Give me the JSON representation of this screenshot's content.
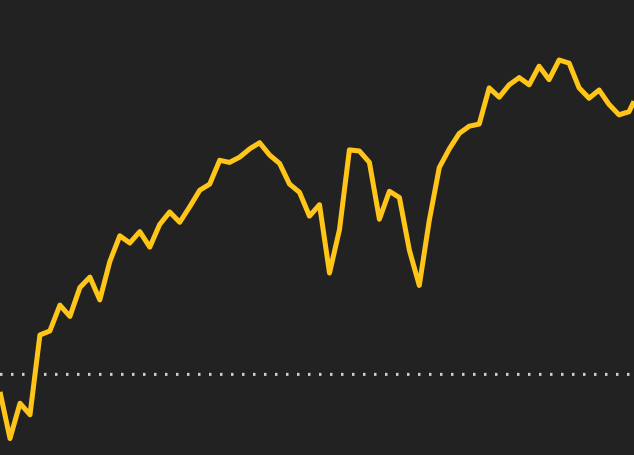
{
  "chart_data": {
    "type": "line",
    "title": "",
    "xlabel": "",
    "ylabel": "",
    "grid": false,
    "legend": "none",
    "xlim": [
      0,
      127
    ],
    "ylim": [
      80,
      520
    ],
    "reference_line": {
      "value": 158,
      "style": "dotted",
      "color": "#cfcfcf"
    },
    "series": [
      {
        "color": "#ffc619",
        "x": [
          0,
          2,
          4,
          6,
          8,
          10,
          12,
          14,
          16,
          18,
          20,
          22,
          24,
          26,
          28,
          30,
          32,
          34,
          36,
          38,
          40,
          42,
          44,
          46,
          48,
          50,
          52,
          54,
          56,
          58,
          60,
          62,
          64,
          66,
          68,
          70,
          72,
          74,
          76,
          78,
          80,
          82,
          84,
          86,
          88,
          90,
          92,
          94,
          96,
          98,
          100,
          102,
          104,
          106,
          108,
          110,
          112,
          114,
          116,
          118,
          120,
          122,
          124,
          126,
          127
        ],
        "values": [
          141,
          96,
          130,
          119,
          196,
          200,
          225,
          214,
          242,
          252,
          230,
          267,
          292,
          285,
          296,
          281,
          303,
          315,
          305,
          320,
          336,
          342,
          365,
          363,
          368,
          376,
          382,
          370,
          362,
          342,
          334,
          311,
          322,
          256,
          298,
          375,
          374,
          363,
          308,
          335,
          329,
          278,
          244,
          307,
          358,
          376,
          391,
          398,
          400,
          435,
          426,
          438,
          445,
          438,
          456,
          443,
          462,
          459,
          435,
          425,
          433,
          419,
          409,
          412,
          422
        ],
        "values_note_omitted": false
      }
    ]
  },
  "colors": {
    "background": "#222222",
    "line": "#ffc619",
    "reference": "#cfcfcf"
  }
}
